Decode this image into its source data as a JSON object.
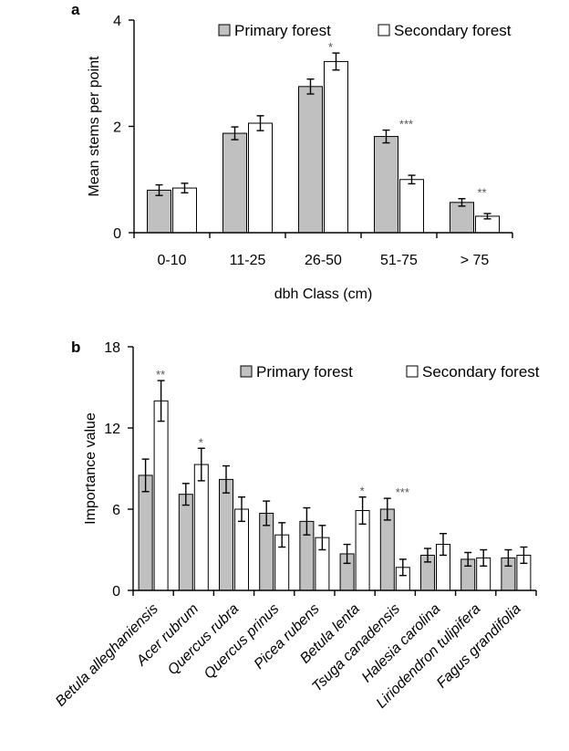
{
  "colors": {
    "primary": "#c0c0c0",
    "secondary": "#ffffff",
    "outline": "#000000"
  },
  "chart_data": [
    {
      "type": "bar",
      "panel_label": "a",
      "categories": [
        "0-10",
        "11-25",
        "26-50",
        "51-75",
        "> 75"
      ],
      "series": [
        {
          "name": "Primary forest",
          "values": [
            0.8,
            1.87,
            2.75,
            1.81,
            0.57
          ],
          "errors": [
            0.1,
            0.12,
            0.14,
            0.12,
            0.07
          ]
        },
        {
          "name": "Secondary forest",
          "values": [
            0.84,
            2.06,
            3.22,
            1.0,
            0.31
          ],
          "errors": [
            0.09,
            0.14,
            0.16,
            0.08,
            0.05
          ]
        }
      ],
      "significance": [
        {
          "category": "26-50",
          "label": "*"
        },
        {
          "category": "51-75",
          "label": "***"
        },
        {
          "category": "> 75",
          "label": "**"
        }
      ],
      "xlabel": "dbh  Class (cm)",
      "ylabel": "Mean stems per point",
      "ylim": [
        0,
        4
      ],
      "yticks": [
        0,
        2,
        4
      ],
      "legend": "top-right"
    },
    {
      "type": "bar",
      "panel_label": "b",
      "categories": [
        "Betula alleghaniensis",
        "Acer rubrum",
        "Quercus rubra",
        "Quercus prinus",
        "Picea rubens",
        "Betula lenta",
        "Tsuga canadensis",
        "Halesia carolina",
        "Liriodendron tulipifera",
        "Fagus grandifolia"
      ],
      "series": [
        {
          "name": "Primary forest",
          "values": [
            8.5,
            7.1,
            8.2,
            5.7,
            5.1,
            2.7,
            6.0,
            2.6,
            2.3,
            2.4
          ],
          "errors": [
            1.2,
            0.8,
            1.0,
            0.9,
            1.0,
            0.7,
            0.8,
            0.5,
            0.5,
            0.6
          ]
        },
        {
          "name": "Secondary forest",
          "values": [
            14.0,
            9.3,
            6.0,
            4.1,
            3.9,
            5.9,
            1.7,
            3.4,
            2.4,
            2.6
          ],
          "errors": [
            1.5,
            1.2,
            0.9,
            0.9,
            0.9,
            1.0,
            0.6,
            0.8,
            0.6,
            0.6
          ]
        }
      ],
      "significance": [
        {
          "category": "Betula alleghaniensis",
          "label": "**"
        },
        {
          "category": "Acer rubrum",
          "label": "*"
        },
        {
          "category": "Betula lenta",
          "label": "*"
        },
        {
          "category": "Tsuga canadensis",
          "label": "***"
        }
      ],
      "xlabel": "",
      "ylabel": "Importance value",
      "ylim": [
        0,
        18
      ],
      "yticks": [
        0,
        6,
        12,
        18
      ],
      "legend": "top-right"
    }
  ]
}
